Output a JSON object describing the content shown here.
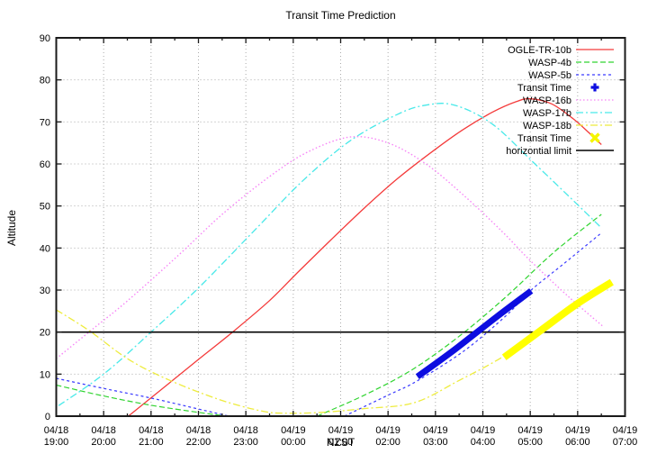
{
  "title": "Transit Time Prediction",
  "chart_data": {
    "type": "line",
    "title": "Transit Time Prediction",
    "xlabel": "NZST",
    "ylabel": "Altitude",
    "ylim": [
      0,
      90
    ],
    "y_tick_step": 10,
    "y_ticks": [
      "0",
      "10",
      "20",
      "30",
      "40",
      "50",
      "60",
      "70",
      "80",
      "90"
    ],
    "x_range_hours": 12,
    "x_start": "04/18 19:00",
    "x_end": "04/19 07:00",
    "grid": "dotted",
    "grid_color": "#ababab",
    "x_ticks": [
      {
        "date": "04/18",
        "time": "19:00"
      },
      {
        "date": "04/18",
        "time": "20:00"
      },
      {
        "date": "04/18",
        "time": "21:00"
      },
      {
        "date": "04/18",
        "time": "22:00"
      },
      {
        "date": "04/18",
        "time": "23:00"
      },
      {
        "date": "04/19",
        "time": "00:00"
      },
      {
        "date": "04/19",
        "time": "01:00"
      },
      {
        "date": "04/19",
        "time": "02:00"
      },
      {
        "date": "04/19",
        "time": "03:00"
      },
      {
        "date": "04/19",
        "time": "04:00"
      },
      {
        "date": "04/19",
        "time": "05:00"
      },
      {
        "date": "04/19",
        "time": "06:00"
      },
      {
        "date": "04/19",
        "time": "07:00"
      }
    ],
    "series": [
      {
        "name": "OGLE-TR-10b",
        "role": "curve",
        "color": "#f43b3b",
        "dash": "",
        "width": 1.3,
        "segments": [
          [
            [
              1.52,
              0
            ],
            [
              2.2,
              6.2
            ],
            [
              3.0,
              13.5
            ],
            [
              3.72,
              20
            ],
            [
              4.5,
              27.5
            ],
            [
              5.12,
              34.5
            ],
            [
              5.8,
              42
            ],
            [
              6.5,
              49.5
            ],
            [
              7.2,
              56.5
            ],
            [
              8.0,
              63.5
            ],
            [
              8.6,
              68.3
            ],
            [
              9.2,
              72.3
            ],
            [
              9.7,
              74.8
            ],
            [
              10.0,
              75.5
            ],
            [
              10.45,
              74.3
            ],
            [
              10.9,
              70.8
            ],
            [
              11.25,
              67.3
            ],
            [
              11.5,
              64.6
            ]
          ]
        ]
      },
      {
        "name": "WASP-4b",
        "role": "curve",
        "color": "#30d430",
        "dash": "6,3",
        "width": 1.2,
        "segments": [
          [
            [
              0,
              7.4
            ],
            [
              1,
              4.8
            ],
            [
              2,
              2.6
            ],
            [
              3,
              0.9
            ],
            [
              3.6,
              0
            ]
          ],
          [
            [
              5.5,
              0
            ],
            [
              6.5,
              5
            ],
            [
              7.5,
              11
            ],
            [
              8.5,
              19
            ],
            [
              9.5,
              28.5
            ],
            [
              10.5,
              39
            ],
            [
              11.5,
              48
            ]
          ]
        ]
      },
      {
        "name": "WASP-5b",
        "role": "curve",
        "color": "#3b3bff",
        "dash": "3,3",
        "width": 1.2,
        "segments": [
          [
            [
              0,
              9
            ],
            [
              1,
              6.6
            ],
            [
              2,
              4.3
            ],
            [
              3,
              1.7
            ],
            [
              3.65,
              0
            ]
          ],
          [
            [
              6.08,
              0
            ],
            [
              7.0,
              5
            ],
            [
              7.6,
              8.3
            ],
            [
              8.6,
              15.5
            ],
            [
              9.5,
              24
            ],
            [
              10.0,
              29.8
            ],
            [
              10.7,
              36.2
            ],
            [
              11.47,
              43.3
            ]
          ]
        ]
      },
      {
        "name": "WASP-16b",
        "role": "curve",
        "color": "#f784f7",
        "dash": "1.5,2.5",
        "width": 1.4,
        "segments": [
          [
            [
              0,
              13.7
            ],
            [
              0.8,
              21
            ],
            [
              1.5,
              27.4
            ],
            [
              2.6,
              38.5
            ],
            [
              3.5,
              48
            ],
            [
              4.5,
              57
            ],
            [
              5.3,
              62.8
            ],
            [
              6.2,
              66.4
            ],
            [
              7.0,
              65
            ],
            [
              7.8,
              60
            ],
            [
              8.6,
              52.5
            ],
            [
              9.4,
              44
            ],
            [
              10.0,
              37
            ],
            [
              10.8,
              28.5
            ],
            [
              11.53,
              21.4
            ]
          ]
        ]
      },
      {
        "name": "WASP-17b",
        "role": "curve",
        "color": "#49e9e9",
        "dash": "8,3,2,3",
        "width": 1.3,
        "segments": [
          [
            [
              0.05,
              2.5
            ],
            [
              1,
              10
            ],
            [
              2,
              20
            ],
            [
              3,
              30.5
            ],
            [
              4.2,
              44.4
            ],
            [
              5.2,
              56
            ],
            [
              6.2,
              65.5
            ],
            [
              7.2,
              71.8
            ],
            [
              7.8,
              74
            ],
            [
              8.4,
              74
            ],
            [
              9.2,
              69.5
            ],
            [
              10.1,
              60
            ],
            [
              11.0,
              50.3
            ],
            [
              11.5,
              44.8
            ]
          ]
        ]
      },
      {
        "name": "WASP-18b",
        "role": "curve",
        "color": "#eeec3e",
        "dash": "8,3,2,3",
        "width": 1.3,
        "segments": [
          [
            [
              0,
              25.3
            ],
            [
              0.7,
              20.3
            ],
            [
              1.5,
              13.7
            ],
            [
              2.3,
              9
            ],
            [
              3.4,
              4.1
            ],
            [
              4.3,
              1.3
            ],
            [
              4.8,
              0.7
            ],
            [
              5.6,
              0.9
            ],
            [
              6.5,
              1.8
            ],
            [
              7.55,
              3.2
            ],
            [
              8.5,
              8.5
            ],
            [
              9.4,
              14
            ],
            [
              10.3,
              21
            ],
            [
              11.1,
              27.5
            ],
            [
              11.72,
              31.9
            ]
          ]
        ]
      },
      {
        "name": "horizontial limit",
        "role": "limit",
        "color": "#000000",
        "dash": "",
        "width": 1.6,
        "segments": [
          [
            [
              0,
              20
            ],
            [
              12,
              20
            ]
          ]
        ]
      },
      {
        "name": "Transit Time (WASP-5b)",
        "role": "transit",
        "color": "#0d0de0",
        "dash": "",
        "width": 7,
        "segments": [
          [
            [
              7.62,
              9.4
            ],
            [
              8.4,
              15.8
            ],
            [
              9.3,
              23.7
            ],
            [
              10.02,
              29.8
            ]
          ]
        ]
      },
      {
        "name": "Transit Time (WASP-18b)",
        "role": "transit",
        "color": "#ffff00",
        "dash": "",
        "width": 8,
        "segments": [
          [
            [
              9.45,
              14.0
            ],
            [
              10.2,
              20.2
            ],
            [
              11.0,
              26.8
            ],
            [
              11.72,
              31.9
            ]
          ]
        ]
      }
    ]
  },
  "legend": {
    "items": [
      {
        "label": "OGLE-TR-10b",
        "type": "line",
        "color": "#f43b3b",
        "dash": ""
      },
      {
        "label": "WASP-4b",
        "type": "line",
        "color": "#30d430",
        "dash": "6,3"
      },
      {
        "label": "WASP-5b",
        "type": "line",
        "color": "#3b3bff",
        "dash": "3,3"
      },
      {
        "label": "Transit Time",
        "type": "marker",
        "marker": "plus",
        "color": "#0d0de0"
      },
      {
        "label": "WASP-16b",
        "type": "line",
        "color": "#f784f7",
        "dash": "1.5,2.5"
      },
      {
        "label": "WASP-17b",
        "type": "line",
        "color": "#49e9e9",
        "dash": "8,3,2,3"
      },
      {
        "label": "WASP-18b",
        "type": "line",
        "color": "#eeec3e",
        "dash": "8,3,2,3"
      },
      {
        "label": "Transit Time",
        "type": "marker",
        "marker": "cross",
        "color": "#f5f500"
      },
      {
        "label": "horizontial limit",
        "type": "line",
        "color": "#000000",
        "dash": ""
      }
    ]
  },
  "colors": {
    "background": "#ffffff",
    "axis": "#1a1a1a",
    "grid": "#ababab",
    "text": "#000000"
  }
}
